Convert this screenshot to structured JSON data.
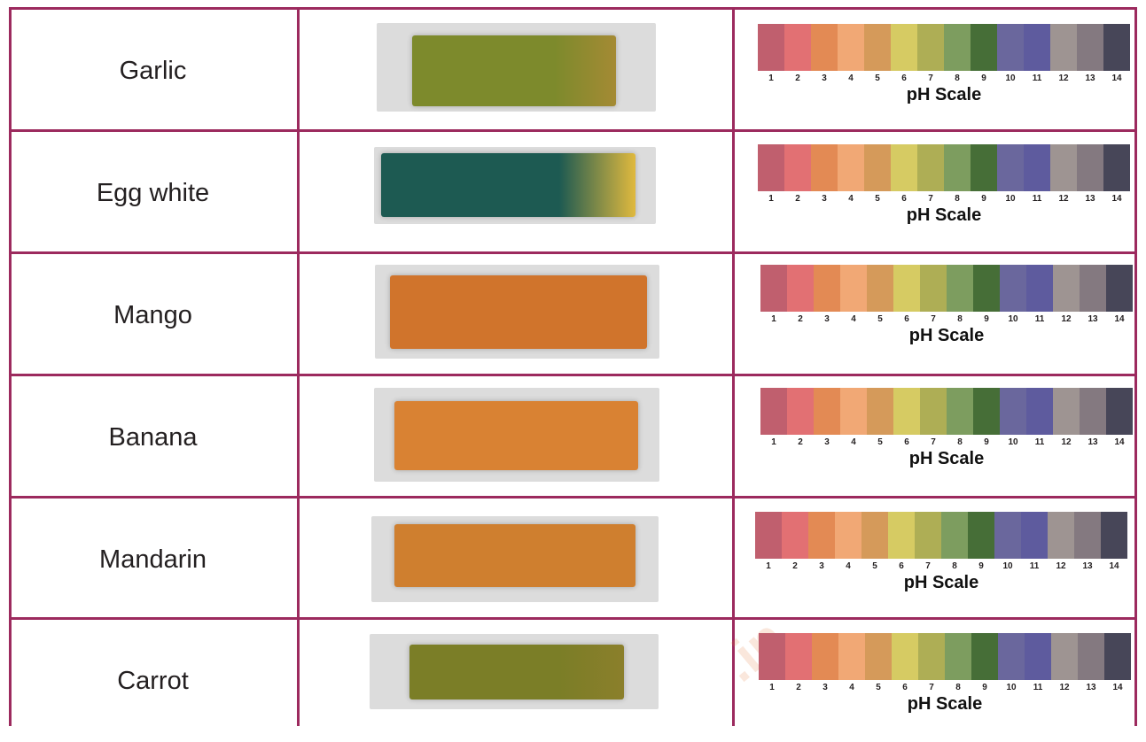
{
  "table": {
    "rows": [
      {
        "sample": "Garlic",
        "scale_title": "pH Scale",
        "strip_color": "#7d8a2c",
        "strip_edge": "#a48a34"
      },
      {
        "sample": "Egg white",
        "scale_title": "pH Scale",
        "strip_color": "#1d5a52",
        "strip_edge": "#e0b93e"
      },
      {
        "sample": "Mango",
        "scale_title": "pH Scale",
        "strip_color": "#d0742c",
        "strip_edge": "#d0742c"
      },
      {
        "sample": "Banana",
        "scale_title": "pH Scale",
        "strip_color": "#d98233",
        "strip_edge": "#d98233"
      },
      {
        "sample": "Mandarin",
        "scale_title": "pH Scale",
        "strip_color": "#cf7f2f",
        "strip_edge": "#cf7f2f"
      },
      {
        "sample": "Carrot",
        "scale_title": "pH Scale",
        "strip_color": "#7b7e27",
        "strip_edge": "#8b7f2b"
      }
    ]
  },
  "ph_scale": {
    "ticks": [
      "1",
      "2",
      "3",
      "4",
      "5",
      "6",
      "7",
      "8",
      "9",
      "10",
      "11",
      "12",
      "13",
      "14"
    ],
    "colors": [
      "#c05f6e",
      "#e27073",
      "#e38a54",
      "#f1a875",
      "#d59a5a",
      "#d6cb63",
      "#aeae55",
      "#7d9d5f",
      "#466e37",
      "#6a679d",
      "#5e5b9e",
      "#9e9492",
      "#847980",
      "#474658"
    ]
  },
  "border_color": "#9c2a5e",
  "watermark": ".in"
}
